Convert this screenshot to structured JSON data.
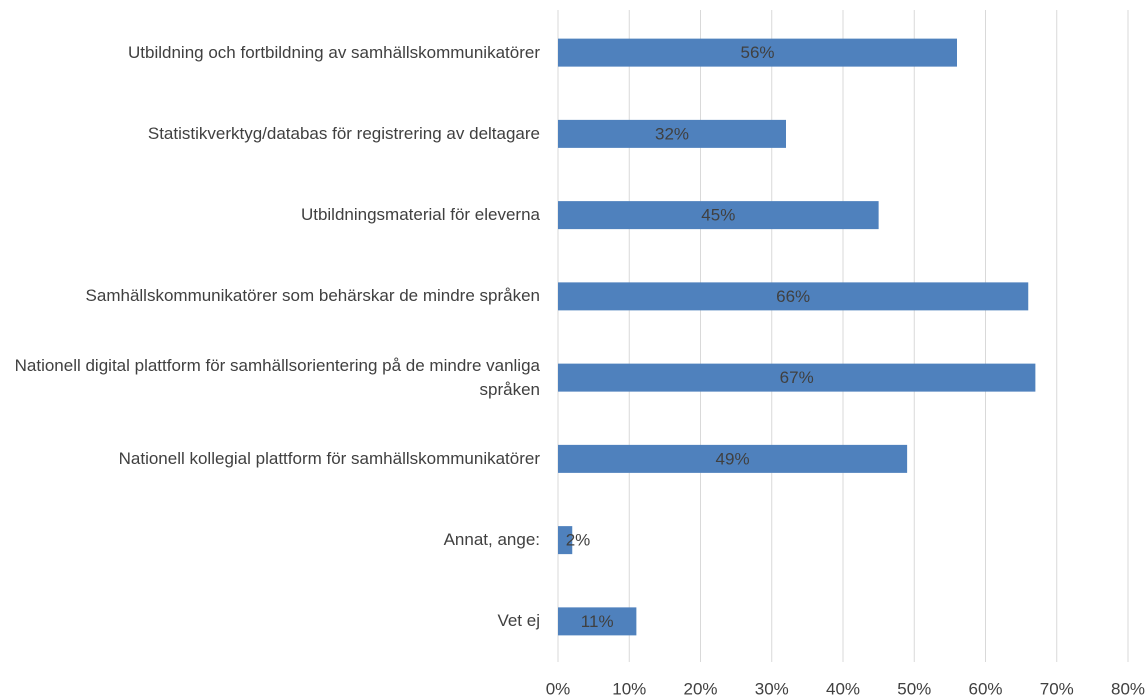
{
  "chart_data": {
    "type": "bar",
    "orientation": "horizontal",
    "categories": [
      "Utbildning och fortbildning av samhällskommunikatörer",
      "Statistikverktyg/databas för registrering av deltagare",
      "Utbildningsmaterial för eleverna",
      "Samhällskommunikatörer som behärskar de mindre språken",
      "Nationell digital plattform för samhällsorientering på de mindre vanliga språken",
      "Nationell kollegial plattform för samhällskommunikatörer",
      "Annat, ange:",
      "Vet ej"
    ],
    "values": [
      56,
      32,
      45,
      66,
      67,
      49,
      2,
      11
    ],
    "value_labels": [
      "56%",
      "32%",
      "45%",
      "66%",
      "67%",
      "49%",
      "2%",
      "11%"
    ],
    "color": "#4f81bd",
    "xlim": [
      0,
      80
    ],
    "xticks": [
      {
        "value": 0,
        "label": "0%"
      },
      {
        "value": 10,
        "label": "10%"
      },
      {
        "value": 20,
        "label": "20%"
      },
      {
        "value": 30,
        "label": "30%"
      },
      {
        "value": 40,
        "label": "40%"
      },
      {
        "value": 50,
        "label": "50%"
      },
      {
        "value": 60,
        "label": "60%"
      },
      {
        "value": 70,
        "label": "70%"
      },
      {
        "value": 80,
        "label": "80%"
      }
    ],
    "grid": true
  }
}
